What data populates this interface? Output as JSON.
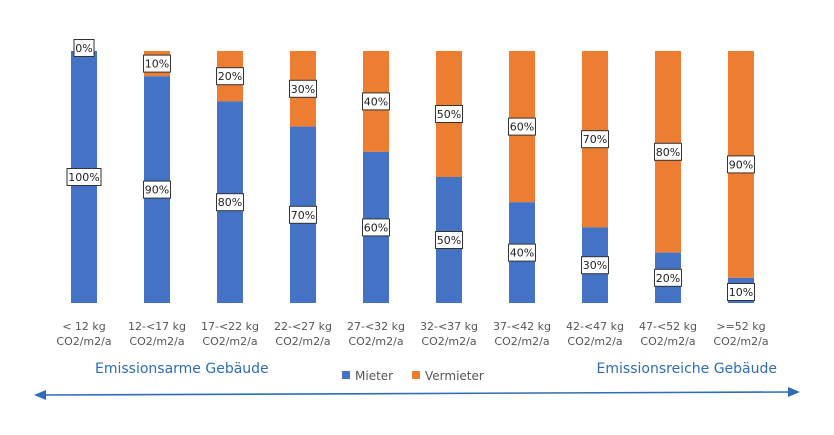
{
  "chart_data": {
    "type": "bar",
    "stacked": true,
    "orientation": "vertical",
    "categories": [
      [
        "< 12 kg",
        "CO2/m2/a"
      ],
      [
        "12-<17 kg",
        "CO2/m2/a"
      ],
      [
        "17-<22 kg",
        "CO2/m2/a"
      ],
      [
        "22-<27 kg",
        "CO2/m2/a"
      ],
      [
        "27-<32 kg",
        "CO2/m2/a"
      ],
      [
        "32-<37 kg",
        "CO2/m2/a"
      ],
      [
        "37-<42 kg",
        "CO2/m2/a"
      ],
      [
        "42-<47 kg",
        "CO2/m2/a"
      ],
      [
        "47-<52 kg",
        "CO2/m2/a"
      ],
      [
        ">=52 kg",
        "CO2/m2/a"
      ]
    ],
    "series": [
      {
        "name": "Mieter",
        "color": "#4472C4",
        "values": [
          100,
          90,
          80,
          70,
          60,
          50,
          40,
          30,
          20,
          10
        ],
        "labels": [
          "100%",
          "90%",
          "80%",
          "70%",
          "60%",
          "50%",
          "40%",
          "30%",
          "20%",
          "10%"
        ]
      },
      {
        "name": "Vermieter",
        "color": "#ED7D31",
        "values": [
          0,
          10,
          20,
          30,
          40,
          50,
          60,
          70,
          80,
          90
        ],
        "labels": [
          "0%",
          "10%",
          "20%",
          "30%",
          "40%",
          "50%",
          "60%",
          "70%",
          "80%",
          "90%"
        ]
      }
    ],
    "ylim": [
      0,
      100
    ],
    "legend_position": "bottom",
    "annotations": {
      "left": "Emissionsarme Gebäude",
      "right": "Emissionsreiche Gebäude"
    },
    "arrow": "double-headed",
    "arrow_color": "#2E6DB4",
    "grid": false
  }
}
